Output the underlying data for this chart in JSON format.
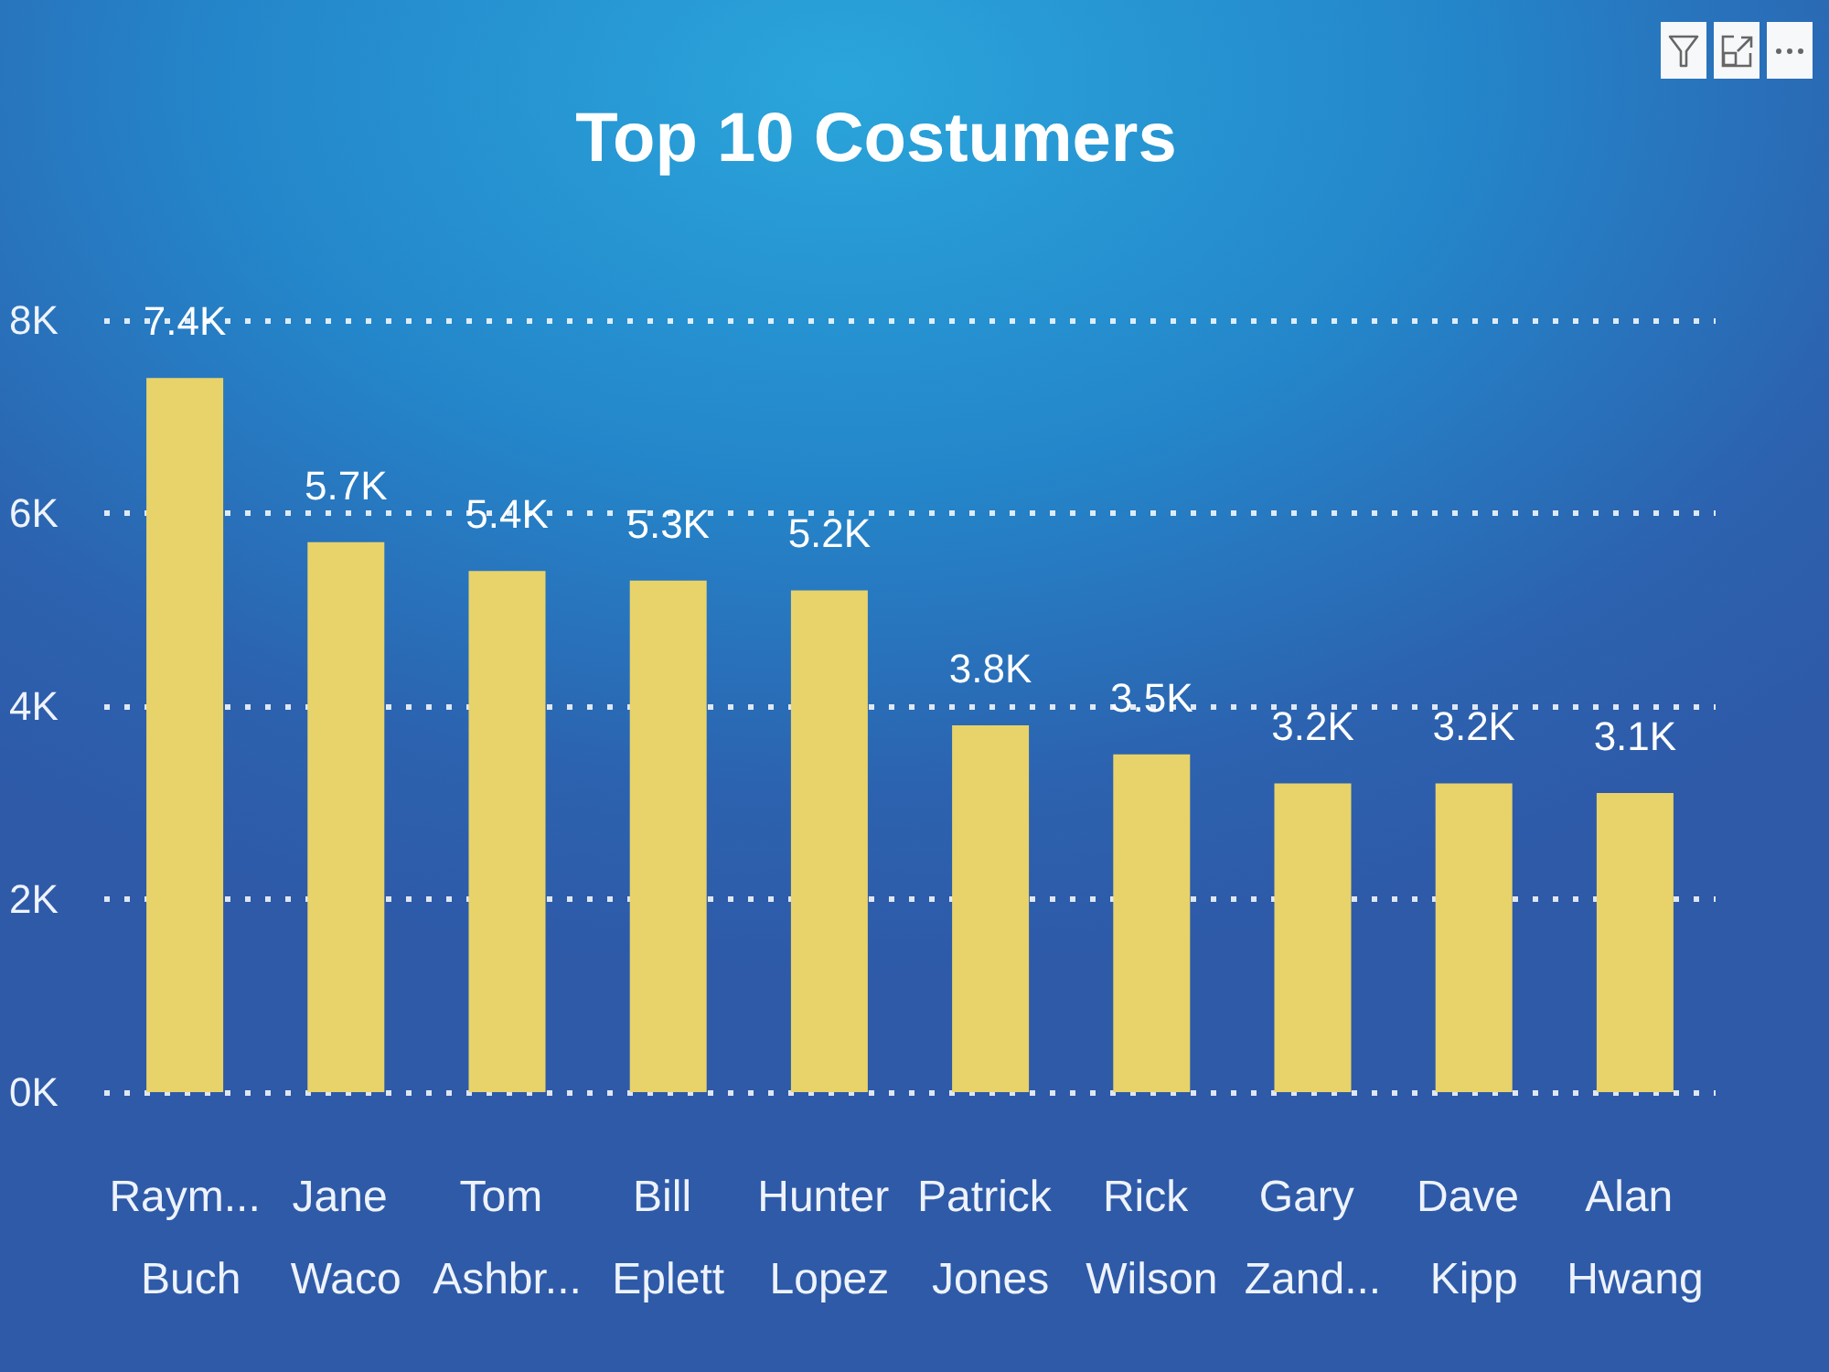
{
  "chart_data": {
    "type": "bar",
    "title": "Top 10 Costumers",
    "categories": [
      "Raym... Buch",
      "Jane Waco",
      "Tom Ashbr...",
      "Bill Eplett",
      "Hunter Lopez",
      "Patrick Jones",
      "Rick Wilson",
      "Gary Zand...",
      "Dave Kipp",
      "Alan Hwang"
    ],
    "values": [
      7400,
      5700,
      5400,
      5300,
      5200,
      3800,
      3500,
      3200,
      3200,
      3100
    ],
    "value_labels": [
      "7.4K",
      "5.7K",
      "5.4K",
      "5.3K",
      "5.2K",
      "3.8K",
      "3.5K",
      "3.2K",
      "3.2K",
      "3.1K"
    ],
    "color": "#e8d36a",
    "ylim": [
      0,
      8000
    ],
    "yticks": [
      {
        "value": 0,
        "label": "0K"
      },
      {
        "value": 2000,
        "label": "2K"
      },
      {
        "value": 4000,
        "label": "4K"
      },
      {
        "value": 6000,
        "label": "6K"
      },
      {
        "value": 8000,
        "label": "8K"
      }
    ],
    "grid": "y"
  }
}
